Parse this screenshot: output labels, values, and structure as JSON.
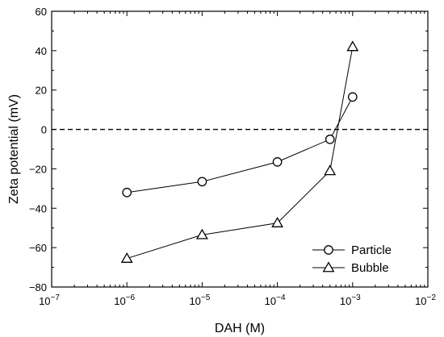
{
  "chart_data": {
    "type": "scatter",
    "xlabel": "DAH (M)",
    "ylabel": "Zeta potential (mV)",
    "x_scale": "log",
    "xlim": [
      1e-07,
      0.01
    ],
    "ylim": [
      -80,
      60
    ],
    "x_ticks": [
      {
        "value": 1e-07,
        "base": "10",
        "exp": "−7"
      },
      {
        "value": 1e-06,
        "base": "10",
        "exp": "−6"
      },
      {
        "value": 1e-05,
        "base": "10",
        "exp": "−5"
      },
      {
        "value": 0.0001,
        "base": "10",
        "exp": "−4"
      },
      {
        "value": 0.001,
        "base": "10",
        "exp": "−3"
      },
      {
        "value": 0.01,
        "base": "10",
        "exp": "−2"
      }
    ],
    "y_ticks": [
      {
        "value": 60,
        "label": "60"
      },
      {
        "value": 40,
        "label": "40"
      },
      {
        "value": 20,
        "label": "20"
      },
      {
        "value": 0,
        "label": "0"
      },
      {
        "value": -20,
        "label": "−20"
      },
      {
        "value": -40,
        "label": "−40"
      },
      {
        "value": -60,
        "label": "−60"
      },
      {
        "value": -80,
        "label": "−80"
      }
    ],
    "reference_line": {
      "y": 0,
      "style": "dashed"
    },
    "legend_position": "bottom-right",
    "grid": false,
    "series": [
      {
        "name": "Particle",
        "marker": "circle",
        "x": [
          1e-06,
          1e-05,
          0.0001,
          0.0005,
          0.001
        ],
        "y": [
          -32,
          -26.5,
          -16.5,
          -5,
          16.5
        ]
      },
      {
        "name": "Bubble",
        "marker": "triangle",
        "x": [
          1e-06,
          1e-05,
          0.0001,
          0.0005,
          0.001
        ],
        "y": [
          -65.5,
          -53.5,
          -47.5,
          -21,
          42
        ]
      }
    ]
  }
}
